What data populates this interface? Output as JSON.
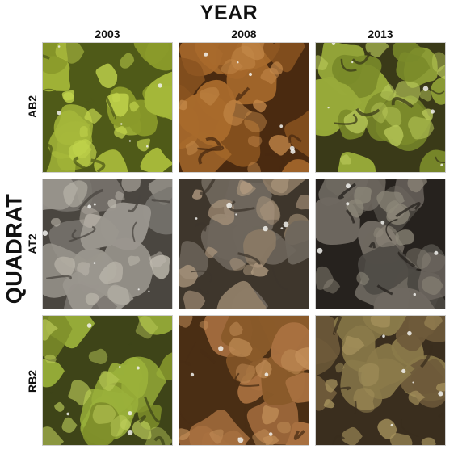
{
  "figure": {
    "title": "YEAR",
    "row_axis_title": "QUADRAT",
    "columns": [
      "2003",
      "2008",
      "2013"
    ],
    "rows": [
      "AB2",
      "AT2",
      "RB2"
    ]
  },
  "tiles": [
    {
      "row": "AB2",
      "year": "2003",
      "cover": "green-moss",
      "base": "#8a9a2a",
      "mid": "#a6b83a",
      "light": "#c4d64e",
      "dark": "#4f5a18"
    },
    {
      "row": "AB2",
      "year": "2008",
      "cover": "brown-moss",
      "base": "#8a5420",
      "mid": "#a86a2c",
      "light": "#c4894a",
      "dark": "#4a2a10"
    },
    {
      "row": "AB2",
      "year": "2013",
      "cover": "green-moss",
      "base": "#7a8a2a",
      "mid": "#98aa3a",
      "light": "#b9c95a",
      "dark": "#3a3a18"
    },
    {
      "row": "AT2",
      "year": "2003",
      "cover": "grey-rock-lichen",
      "base": "#7a7670",
      "mid": "#9a968e",
      "light": "#c2bdb2",
      "dark": "#4a4640"
    },
    {
      "row": "AT2",
      "year": "2008",
      "cover": "grey-brown-rock",
      "base": "#6e665c",
      "mid": "#8e7c66",
      "light": "#b09a80",
      "dark": "#3e362c"
    },
    {
      "row": "AT2",
      "year": "2013",
      "cover": "dark-rock",
      "base": "#4e4a44",
      "mid": "#6e6860",
      "light": "#8e887a",
      "dark": "#26221e"
    },
    {
      "row": "RB2",
      "year": "2003",
      "cover": "green-moss",
      "base": "#7e8e2a",
      "mid": "#9ab03a",
      "light": "#bccc5a",
      "dark": "#3e4418"
    },
    {
      "row": "RB2",
      "year": "2008",
      "cover": "brown-moss",
      "base": "#8a5a2a",
      "mid": "#a87040",
      "light": "#c4905a",
      "dark": "#4a2e14"
    },
    {
      "row": "RB2",
      "year": "2013",
      "cover": "brown-grey-moss",
      "base": "#6e5a3a",
      "mid": "#8a7a4a",
      "light": "#a8945e",
      "dark": "#3a2e1e"
    }
  ]
}
